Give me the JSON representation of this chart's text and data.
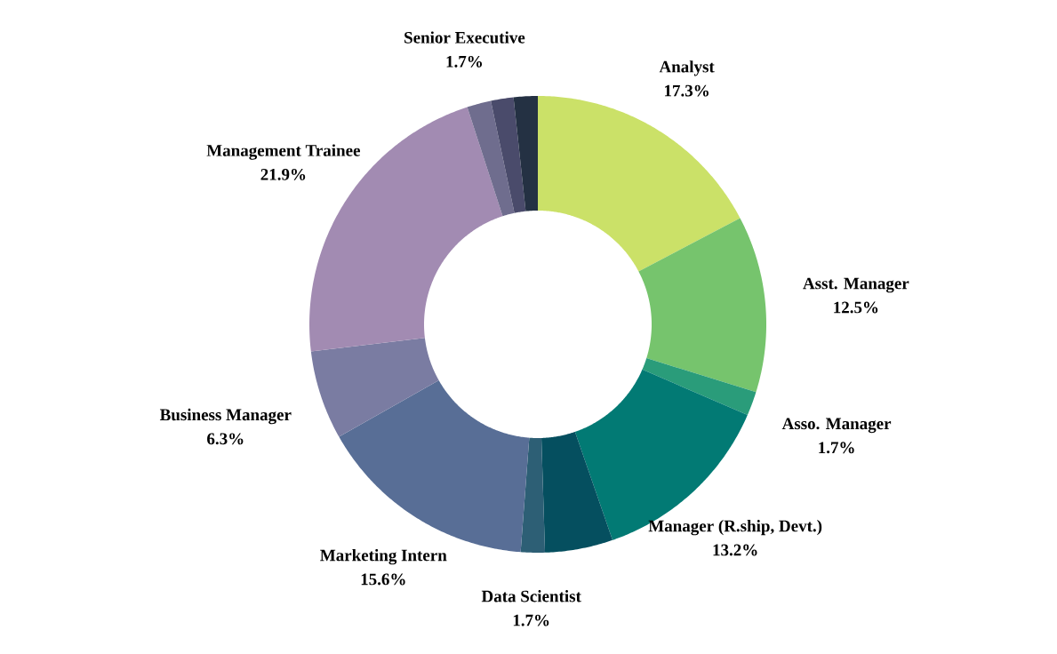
{
  "chart_data": {
    "type": "donut",
    "categories": [
      "Analyst",
      "Asst. Manager",
      "Asso. Manager",
      "Manager (R.ship, Devt.)",
      null,
      "Data Scientist",
      "Marketing Intern",
      "Business Manager",
      "Management Trainee",
      "Senior Executive",
      null,
      null
    ],
    "values": [
      17.3,
      12.5,
      1.7,
      13.2,
      4.8,
      1.7,
      15.6,
      6.3,
      21.9,
      1.7,
      1.6,
      1.7
    ],
    "value_labels": [
      "17.3%",
      "12.5%",
      "1.7%",
      "13.2%",
      null,
      "1.7%",
      "15.6%",
      "6.3%",
      "21.9%",
      "1.7%",
      null,
      null
    ],
    "colors": [
      "#cbe168",
      "#76c46d",
      "#2a9c7a",
      "#027a74",
      "#054f5f",
      "#2d5f75",
      "#586e96",
      "#7a7ca2",
      "#a28bb2",
      "#6f6d8e",
      "#4a4b6b",
      "#243143"
    ]
  }
}
